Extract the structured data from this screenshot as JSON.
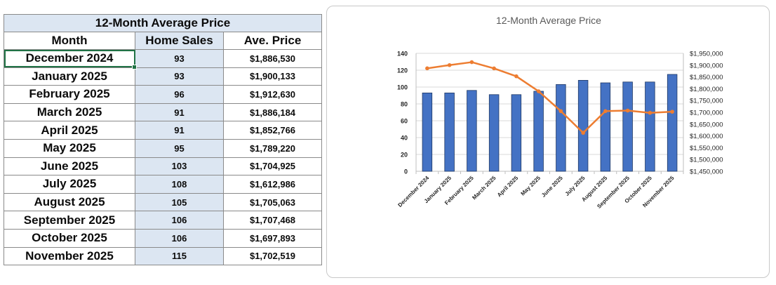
{
  "table": {
    "title": "12-Month Average Price",
    "headers": [
      "Month",
      "Home Sales",
      "Ave. Price"
    ],
    "rows": [
      {
        "month": "December 2024",
        "sales": "93",
        "price": "$1,886,530"
      },
      {
        "month": "January 2025",
        "sales": "93",
        "price": "$1,900,133"
      },
      {
        "month": "February 2025",
        "sales": "96",
        "price": "$1,912,630"
      },
      {
        "month": "March 2025",
        "sales": "91",
        "price": "$1,886,184"
      },
      {
        "month": "April 2025",
        "sales": "91",
        "price": "$1,852,766"
      },
      {
        "month": "May 2025",
        "sales": "95",
        "price": "$1,789,220"
      },
      {
        "month": "June 2025",
        "sales": "103",
        "price": "$1,704,925"
      },
      {
        "month": "July 2025",
        "sales": "108",
        "price": "$1,612,986"
      },
      {
        "month": "August 2025",
        "sales": "105",
        "price": "$1,705,063"
      },
      {
        "month": "September 2025",
        "sales": "106",
        "price": "$1,707,468"
      },
      {
        "month": "October 2025",
        "sales": "106",
        "price": "$1,697,893"
      },
      {
        "month": "November 2025",
        "sales": "115",
        "price": "$1,702,519"
      }
    ]
  },
  "chart_data": {
    "type": "bar",
    "title": "12-Month Average Price",
    "categories": [
      "December 2024",
      "January 2025",
      "February 2025",
      "March 2025",
      "April 2025",
      "May 2025",
      "June 2025",
      "July 2025",
      "August 2025",
      "September 2025",
      "October 2025",
      "November 2025"
    ],
    "series": [
      {
        "name": "Home Sales",
        "type": "bar",
        "axis": "left",
        "color": "#4472c4",
        "values": [
          93,
          93,
          96,
          91,
          91,
          95,
          103,
          108,
          105,
          106,
          106,
          115
        ]
      },
      {
        "name": "Ave. Price",
        "type": "line",
        "axis": "right",
        "color": "#ed7d31",
        "values": [
          1886530,
          1900133,
          1912630,
          1886184,
          1852766,
          1789220,
          1704925,
          1612986,
          1705063,
          1707468,
          1697893,
          1702519
        ]
      }
    ],
    "ylim": [
      0,
      140
    ],
    "yticks": [
      0,
      20,
      40,
      60,
      80,
      100,
      120,
      140
    ],
    "y2lim": [
      1450000,
      1950000
    ],
    "y2ticks": [
      1450000,
      1500000,
      1550000,
      1600000,
      1650000,
      1700000,
      1750000,
      1800000,
      1850000,
      1900000,
      1950000
    ],
    "y2tick_labels": [
      "$1,450,000",
      "$1,500,000",
      "$1,550,000",
      "$1,600,000",
      "$1,650,000",
      "$1,700,000",
      "$1,750,000",
      "$1,800,000",
      "$1,850,000",
      "$1,900,000",
      "$1,950,000"
    ],
    "grid": true,
    "legend": "none"
  }
}
